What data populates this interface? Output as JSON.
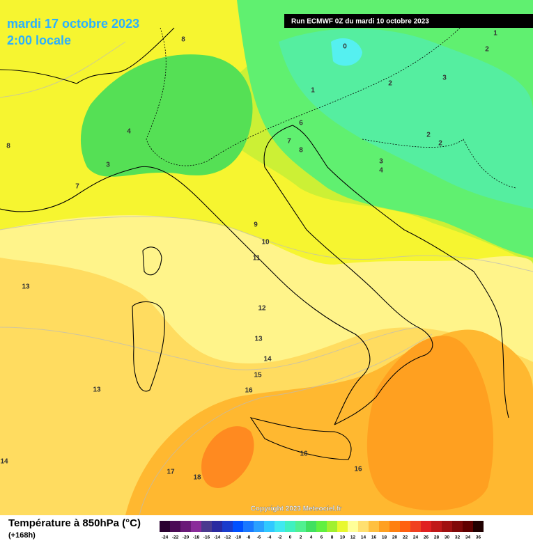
{
  "header": {
    "date": "mardi 17 octobre 2023",
    "time": "2:00 locale",
    "run": "Run ECMWF 0Z du mardi 10 octobre 2023"
  },
  "map": {
    "labels": [
      8,
      1,
      2,
      0,
      3,
      1,
      2,
      4,
      3,
      7,
      8,
      6,
      7,
      8,
      2,
      2,
      3,
      4,
      9,
      10,
      11,
      13,
      12,
      13,
      14,
      15,
      16,
      13,
      16,
      16,
      17,
      18,
      14
    ],
    "copyright": "Copyright 2023 Meteociel.fr"
  },
  "legend": {
    "title": "Température à 850hPa (°C)",
    "lead": "(+168h)",
    "ticks": [
      -24,
      -22,
      -20,
      -18,
      -16,
      -14,
      -12,
      -10,
      -8,
      -6,
      -4,
      -2,
      0,
      2,
      4,
      6,
      8,
      10,
      12,
      14,
      16,
      18,
      20,
      22,
      24,
      26,
      28,
      30,
      32,
      34,
      36
    ],
    "colors": [
      "#2a0030",
      "#4b0a55",
      "#6a1a78",
      "#8a2b9a",
      "#4a3a8f",
      "#2a2aa0",
      "#1a3ccc",
      "#0050ff",
      "#1a78ff",
      "#2aa0ff",
      "#30c8ff",
      "#40e8f0",
      "#40f0c0",
      "#50f090",
      "#40e060",
      "#60f040",
      "#a0f030",
      "#e8f830",
      "#ffff99",
      "#ffe070",
      "#ffc040",
      "#ffa020",
      "#ff8010",
      "#ff6010",
      "#f04020",
      "#e02020",
      "#c01818",
      "#a01010",
      "#800808",
      "#600000",
      "#200000"
    ]
  }
}
